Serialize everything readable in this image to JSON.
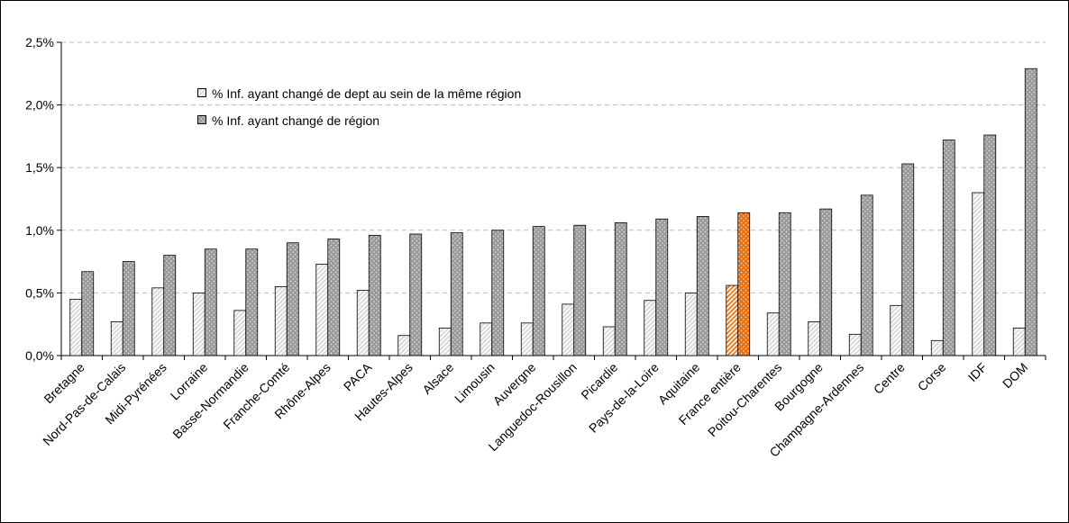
{
  "chart_data": {
    "type": "bar",
    "categories": [
      "Bretagne",
      "Nord-Pas-de-Calais",
      "Midi-Pyrénées",
      "Lorraine",
      "Basse-Normandie",
      "Franche-Comté",
      "Rhône-Alpes",
      "PACA",
      "Hautes-Alpes",
      "Alsace",
      "Limousin",
      "Auvergne",
      "Languedoc-Rousillon",
      "Picardie",
      "Pays-de-la-Loire",
      "Aquitaine",
      "France entière",
      "Poitou-Charentes",
      "Bourgogne",
      "Champagne-Ardennes",
      "Centre",
      "Corse",
      "IDF",
      "DOM"
    ],
    "series": [
      {
        "name": "% Inf. ayant changé de dept au sein de la même région",
        "pattern": "hatch",
        "colors": [
          "#d9d9d9",
          "#d9d9d9",
          "#d9d9d9",
          "#d9d9d9",
          "#d9d9d9",
          "#d9d9d9",
          "#d9d9d9",
          "#d9d9d9",
          "#d9d9d9",
          "#d9d9d9",
          "#d9d9d9",
          "#d9d9d9",
          "#d9d9d9",
          "#d9d9d9",
          "#d9d9d9",
          "#d9d9d9",
          "#f07c1e",
          "#d9d9d9",
          "#d9d9d9",
          "#d9d9d9",
          "#d9d9d9",
          "#d9d9d9",
          "#d9d9d9",
          "#d9d9d9"
        ],
        "values": [
          0.45,
          0.27,
          0.54,
          0.5,
          0.36,
          0.55,
          0.73,
          0.52,
          0.16,
          0.22,
          0.26,
          0.26,
          0.41,
          0.23,
          0.44,
          0.5,
          0.56,
          0.34,
          0.27,
          0.17,
          0.4,
          0.12,
          1.3,
          0.22
        ]
      },
      {
        "name": "% Inf. ayant changé de région",
        "pattern": "dots",
        "colors": [
          "#9a9a9a",
          "#9a9a9a",
          "#9a9a9a",
          "#9a9a9a",
          "#9a9a9a",
          "#9a9a9a",
          "#9a9a9a",
          "#9a9a9a",
          "#9a9a9a",
          "#9a9a9a",
          "#9a9a9a",
          "#9a9a9a",
          "#9a9a9a",
          "#9a9a9a",
          "#9a9a9a",
          "#9a9a9a",
          "#e8700e",
          "#9a9a9a",
          "#9a9a9a",
          "#9a9a9a",
          "#9a9a9a",
          "#9a9a9a",
          "#9a9a9a",
          "#9a9a9a"
        ],
        "values": [
          0.67,
          0.75,
          0.8,
          0.85,
          0.85,
          0.9,
          0.93,
          0.96,
          0.97,
          0.98,
          1.0,
          1.03,
          1.04,
          1.06,
          1.09,
          1.11,
          1.14,
          1.14,
          1.17,
          1.28,
          1.53,
          1.72,
          1.76,
          2.29
        ]
      }
    ],
    "ylim": [
      0,
      2.5
    ],
    "yticks": [
      {
        "value": 0,
        "label": "0,0%"
      },
      {
        "value": 0.5,
        "label": "0,5%"
      },
      {
        "value": 1,
        "label": "1,0%"
      },
      {
        "value": 1.5,
        "label": "1,5%"
      },
      {
        "value": 2,
        "label": "2,0%"
      },
      {
        "value": 2.5,
        "label": "2,5%"
      }
    ],
    "grid": true
  }
}
